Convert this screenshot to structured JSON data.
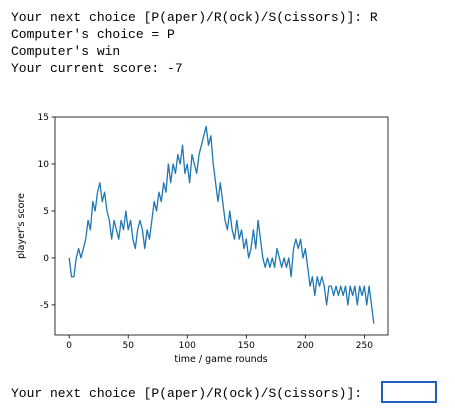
{
  "console": {
    "lines": [
      "Your next choice [P(aper)/R(ock)/S(cissors)]: R",
      "Computer's choice = P",
      "Computer's win",
      "Your current score: -7"
    ],
    "prompt": "Your next choice [P(aper)/R(ock)/S(cissors)]: "
  },
  "chart_data": {
    "type": "line",
    "xlabel": "time / game rounds",
    "ylabel": "player's score",
    "x": [
      0,
      2,
      4,
      6,
      8,
      10,
      12,
      14,
      16,
      18,
      20,
      22,
      24,
      26,
      28,
      30,
      32,
      34,
      36,
      38,
      40,
      42,
      44,
      46,
      48,
      50,
      52,
      54,
      56,
      58,
      60,
      62,
      64,
      66,
      68,
      70,
      72,
      74,
      76,
      78,
      80,
      82,
      84,
      86,
      88,
      90,
      92,
      94,
      96,
      98,
      100,
      102,
      104,
      106,
      108,
      110,
      112,
      114,
      116,
      118,
      120,
      122,
      124,
      126,
      128,
      130,
      132,
      134,
      136,
      138,
      140,
      142,
      144,
      146,
      148,
      150,
      152,
      154,
      156,
      158,
      160,
      162,
      164,
      166,
      168,
      170,
      172,
      174,
      176,
      178,
      180,
      182,
      184,
      186,
      188,
      190,
      192,
      194,
      196,
      198,
      200,
      202,
      204,
      206,
      208,
      210,
      212,
      214,
      216,
      218,
      220,
      222,
      224,
      226,
      228,
      230,
      232,
      234,
      236,
      238,
      240,
      242,
      244,
      246,
      248,
      250,
      252,
      254,
      256,
      258
    ],
    "series": [
      {
        "color": "#1f77b4",
        "values": [
          0,
          -2,
          -2,
          0,
          1,
          0,
          1,
          2,
          4,
          3,
          6,
          5,
          7,
          8,
          6,
          7,
          5,
          4,
          2,
          4,
          3,
          2,
          4,
          3,
          5,
          3,
          4,
          2,
          1,
          3,
          4,
          3,
          1,
          3,
          2,
          4,
          6,
          5,
          7,
          6,
          8,
          7,
          10,
          8,
          10,
          9,
          11,
          10,
          12,
          9,
          10,
          8,
          11,
          10,
          9,
          11,
          12,
          13,
          14,
          12,
          13,
          10,
          8,
          6,
          8,
          6,
          4,
          3,
          5,
          3,
          2,
          4,
          2,
          3,
          1,
          2,
          0,
          1,
          3,
          1,
          4,
          2,
          0,
          -1,
          0,
          -1,
          0,
          -1,
          1,
          0,
          -1,
          0,
          -1,
          0,
          -2,
          1,
          2,
          1,
          2,
          0,
          1,
          -1,
          -3,
          -2,
          -4,
          -2,
          -3,
          -2,
          -3,
          -5,
          -3,
          -3,
          -4,
          -3,
          -4,
          -3,
          -4,
          -3,
          -5,
          -3,
          -4,
          -3,
          -5,
          -3,
          -4,
          -3,
          -5,
          -3,
          -5,
          -7
        ]
      }
    ],
    "xlim": [
      -12,
      270
    ],
    "ylim": [
      -8.2,
      15
    ],
    "xticks": [
      0,
      50,
      100,
      150,
      200,
      250
    ],
    "yticks": [
      -5,
      0,
      5,
      10,
      15
    ]
  }
}
